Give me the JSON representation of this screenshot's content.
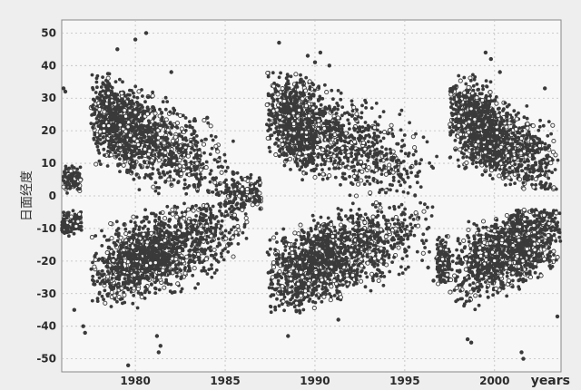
{
  "chart_data": {
    "type": "scatter",
    "title": "",
    "xlabel": "years",
    "ylabel": "日面经度",
    "xlim": [
      1975.9,
      2003.7
    ],
    "ylim": [
      -54,
      54
    ],
    "xticks": [
      1980,
      1985,
      1990,
      1995,
      2000
    ],
    "yticks": [
      50,
      40,
      30,
      20,
      10,
      0,
      -10,
      -20,
      -30,
      -40,
      -50
    ],
    "grid": true,
    "legend": "none",
    "colors": {
      "background": "#eeeeee",
      "plot_area": "#f7f7f7",
      "grid": "#bdbdbd",
      "points": "#3a3a3a"
    },
    "series": [
      {
        "clusters": [
          {
            "x": [
              1976.0,
              1977.0
            ],
            "y": [
              0,
              10
            ]
          },
          {
            "x": [
              1975.9,
              1977.0
            ],
            "y": [
              -14,
              -3
            ]
          },
          {
            "x": [
              1977.5,
              1985.5
            ],
            "y": [
              0,
              38
            ],
            "peak": [
              1979.5,
              20
            ]
          },
          {
            "x": [
              1977.5,
              1986.5
            ],
            "y": [
              -36,
              -2
            ],
            "peak": [
              1981.0,
              -18
            ]
          },
          {
            "x": [
              1985.0,
              1987.0
            ],
            "y": [
              -8,
              10
            ]
          },
          {
            "x": [
              1987.3,
              1996.8
            ],
            "y": [
              0,
              38
            ],
            "peak": [
              1989.5,
              20
            ]
          },
          {
            "x": [
              1987.3,
              1996.8
            ],
            "y": [
              -36,
              -2
            ],
            "peak": [
              1990.5,
              -20
            ]
          },
          {
            "x": [
              1996.8,
              1997.5
            ],
            "y": [
              -30,
              -10
            ]
          },
          {
            "x": [
              1997.5,
              2003.7
            ],
            "y": [
              2,
              38
            ],
            "peak": [
              1999.5,
              20
            ]
          },
          {
            "x": [
              1997.5,
              2003.7
            ],
            "y": [
              -36,
              -4
            ],
            "peak": [
              2001.0,
              -18
            ]
          }
        ],
        "outliers": [
          {
            "x": 1976.0,
            "y": 33
          },
          {
            "x": 1976.1,
            "y": 32
          },
          {
            "x": 1976.6,
            "y": -35
          },
          {
            "x": 1977.1,
            "y": -40
          },
          {
            "x": 1977.2,
            "y": -42
          },
          {
            "x": 1979.0,
            "y": 45
          },
          {
            "x": 1979.6,
            "y": -52
          },
          {
            "x": 1980.0,
            "y": 48
          },
          {
            "x": 1980.6,
            "y": 50
          },
          {
            "x": 1981.2,
            "y": -43
          },
          {
            "x": 1981.3,
            "y": -48
          },
          {
            "x": 1981.4,
            "y": -46
          },
          {
            "x": 1982.0,
            "y": 38
          },
          {
            "x": 1984.0,
            "y": 24
          },
          {
            "x": 1988.0,
            "y": 47
          },
          {
            "x": 1988.5,
            "y": -43
          },
          {
            "x": 1989.6,
            "y": 43
          },
          {
            "x": 1990.0,
            "y": 41
          },
          {
            "x": 1990.3,
            "y": 44
          },
          {
            "x": 1990.8,
            "y": 40
          },
          {
            "x": 1991.3,
            "y": -38
          },
          {
            "x": 1996.3,
            "y": -22
          },
          {
            "x": 1996.6,
            "y": -26
          },
          {
            "x": 1998.5,
            "y": -44
          },
          {
            "x": 1998.7,
            "y": -45
          },
          {
            "x": 1999.5,
            "y": 44
          },
          {
            "x": 1999.8,
            "y": 42
          },
          {
            "x": 2000.3,
            "y": 38
          },
          {
            "x": 2001.5,
            "y": -48
          },
          {
            "x": 2001.6,
            "y": -50
          },
          {
            "x": 2002.8,
            "y": 33
          },
          {
            "x": 2003.5,
            "y": -37
          }
        ]
      }
    ]
  }
}
